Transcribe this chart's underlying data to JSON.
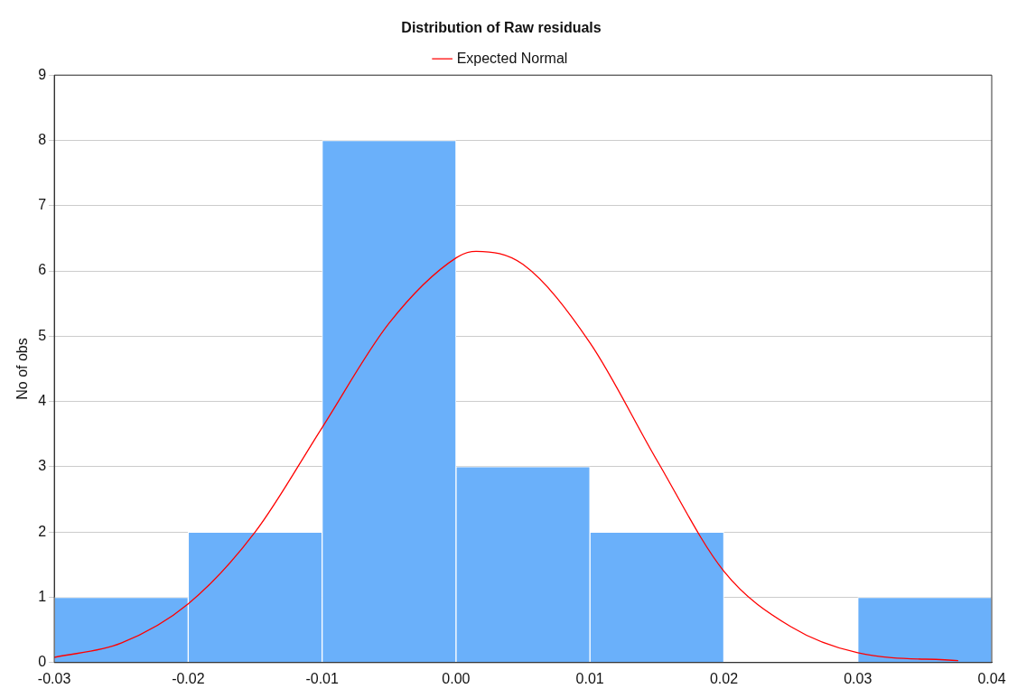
{
  "chart_data": {
    "type": "histogram",
    "title": "Distribution of Raw residuals",
    "ylabel": "No of obs",
    "bins": [
      -0.03,
      -0.02,
      -0.01,
      0,
      0.01,
      0.02,
      0.03,
      0.04
    ],
    "values": [
      1,
      2,
      8,
      3,
      2,
      0,
      1
    ],
    "color": "#6ab0fa",
    "series": [
      {
        "type": "line",
        "name": "Expected Normal",
        "color": "#ff0000",
        "x": [
          -0.03,
          -0.025,
          -0.02,
          -0.015,
          -0.01,
          -0.005,
          0,
          0.0015,
          0.005,
          0.01,
          0.015,
          0.02,
          0.025,
          0.03,
          0.0375
        ],
        "values": [
          0.08,
          0.3,
          0.9,
          2.0,
          3.6,
          5.2,
          6.2,
          6.3,
          6.1,
          4.9,
          3.1,
          1.4,
          0.55,
          0.15,
          0.03
        ]
      }
    ],
    "xlim": [
      -0.03,
      0.04
    ],
    "xticks": [
      -0.03,
      -0.02,
      -0.01,
      {
        "value": 0,
        "label": "0.00"
      },
      0.01,
      0.02,
      0.03,
      0.04
    ],
    "ylim": [
      0,
      9
    ],
    "yticks": [
      0,
      1,
      2,
      3,
      4,
      5,
      6,
      7,
      8,
      9
    ],
    "grid": "y",
    "legend": "top",
    "marker": "none"
  }
}
